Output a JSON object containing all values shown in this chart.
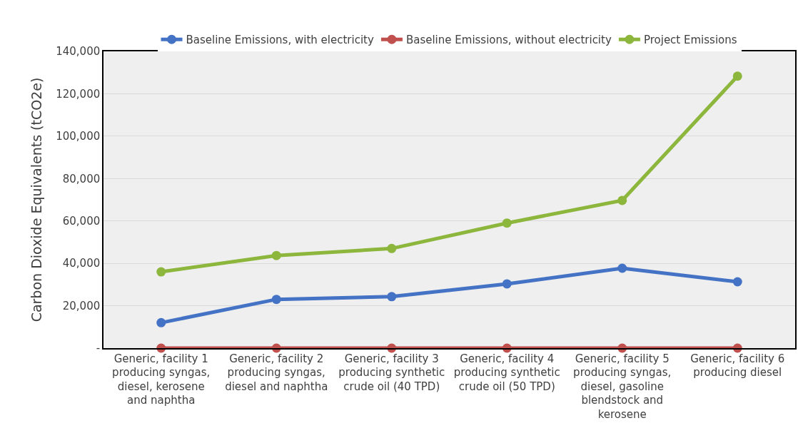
{
  "chart_data": {
    "type": "line",
    "ylabel": "Carbon Dioxide Equivalents (tCO2e)",
    "categories": [
      "Generic, facility 1 producing syngas, diesel, kerosene and naphtha",
      "Generic, facility 2 producing syngas, diesel and naphtha",
      "Generic, facility 3 producing synthetic crude oil (40 TPD)",
      "Generic, facility 4 producing synthetic crude oil (50 TPD)",
      "Generic, facility 5 producing syngas, diesel, gasoline blendstock and kerosene",
      "Generic, facility 6 producing diesel"
    ],
    "series": [
      {
        "name": "Baseline Emissions, with electricity",
        "color": "#4472c4",
        "values": [
          12000,
          23000,
          24300,
          30300,
          37700,
          31300
        ]
      },
      {
        "name": "Baseline Emissions, without electricity",
        "color": "#c0504d",
        "values": [
          0,
          0,
          0,
          0,
          0,
          0
        ]
      },
      {
        "name": "Project Emissions",
        "color": "#8cb63c",
        "values": [
          36000,
          43700,
          47000,
          59000,
          69700,
          128300
        ]
      }
    ],
    "ylim": [
      0,
      140000
    ],
    "yticks": [
      {
        "value": 0,
        "label": "-"
      },
      {
        "value": 20000,
        "label": "20,000"
      },
      {
        "value": 40000,
        "label": "40,000"
      },
      {
        "value": 60000,
        "label": "60,000"
      },
      {
        "value": 80000,
        "label": "80,000"
      },
      {
        "value": 100000,
        "label": "100,000"
      },
      {
        "value": 120000,
        "label": "120,000"
      },
      {
        "value": 140000,
        "label": "140,000"
      }
    ],
    "grid": "y",
    "legend": "top",
    "marker": "circle",
    "line_style": "solid"
  }
}
